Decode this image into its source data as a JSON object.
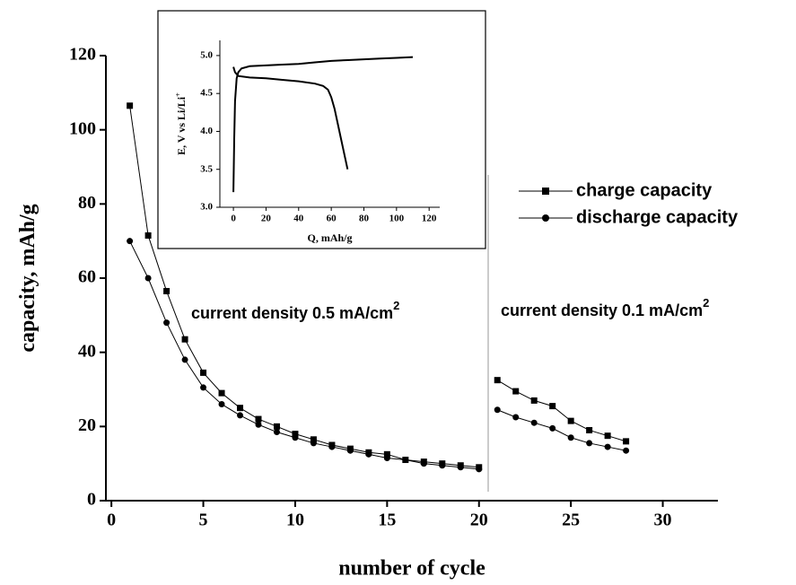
{
  "chart_data": [
    {
      "type": "line",
      "xlabel": "number of cycle",
      "ylabel": "capacity, mAh/g",
      "xlim": [
        -0.3,
        33
      ],
      "ylim": [
        0,
        120
      ],
      "xticks": [
        0,
        5,
        10,
        15,
        20,
        25,
        30
      ],
      "yticks": [
        0,
        20,
        40,
        60,
        80,
        100,
        120
      ],
      "divider_x": 20.5,
      "x": [
        1,
        2,
        3,
        4,
        5,
        6,
        7,
        8,
        9,
        10,
        11,
        12,
        13,
        14,
        15,
        16,
        17,
        18,
        19,
        20,
        21,
        22,
        23,
        24,
        25,
        26,
        27,
        28
      ],
      "series": [
        {
          "name": "charge capacity",
          "color": "#000000",
          "marker": "square",
          "values": [
            106.5,
            71.5,
            56.5,
            43.5,
            34.5,
            29,
            25,
            22,
            20,
            18,
            16.5,
            15,
            14,
            13,
            12.5,
            11,
            10.5,
            10,
            9.5,
            9,
            32.5,
            29.5,
            27,
            25.5,
            21.5,
            19,
            17.5,
            16
          ]
        },
        {
          "name": "discharge capacity",
          "color": "#000000",
          "marker": "circle",
          "values": [
            70,
            60,
            48,
            38,
            30.5,
            26,
            23,
            20.5,
            18.5,
            17,
            15.5,
            14.5,
            13.5,
            12.5,
            11.5,
            11,
            10,
            9.5,
            9,
            8.5,
            24.5,
            22.5,
            21,
            19.5,
            17,
            15.5,
            14.5,
            13.5
          ]
        }
      ],
      "annotations": [
        {
          "text": "current density 0.5 mA/cm",
          "sup": "2"
        },
        {
          "text": "current density 0.1 mA/cm",
          "sup": "2"
        }
      ]
    },
    {
      "type": "line",
      "xlabel": "Q, mAh/g",
      "ylabel": "E, V  vs Li/Li",
      "ylabel_sup": "+",
      "xlim": [
        -8.3,
        126.5
      ],
      "ylim": [
        3.0,
        5.2
      ],
      "xticks": [
        0,
        20,
        40,
        60,
        80,
        100,
        120
      ],
      "yticks": [
        {
          "value": 3,
          "label": "3.0"
        },
        3.5,
        {
          "value": 4,
          "label": "4.0"
        },
        4.5,
        {
          "value": 5,
          "label": "5.0"
        }
      ],
      "series": [
        {
          "color": "#000000",
          "x": [
            0,
            0.5,
            1,
            2,
            3,
            5,
            10,
            20,
            30,
            40,
            50,
            60,
            70,
            80,
            90,
            100,
            110
          ],
          "values": [
            3.2,
            3.9,
            4.4,
            4.7,
            4.78,
            4.83,
            4.86,
            4.87,
            4.88,
            4.89,
            4.91,
            4.93,
            4.94,
            4.95,
            4.96,
            4.97,
            4.98
          ]
        },
        {
          "color": "#000000",
          "x": [
            0,
            1,
            3,
            10,
            20,
            30,
            40,
            50,
            55,
            58,
            60,
            62,
            64,
            66,
            68,
            70
          ],
          "values": [
            4.85,
            4.78,
            4.73,
            4.71,
            4.7,
            4.68,
            4.66,
            4.63,
            4.6,
            4.55,
            4.45,
            4.3,
            4.1,
            3.9,
            3.7,
            3.5
          ]
        }
      ]
    }
  ]
}
